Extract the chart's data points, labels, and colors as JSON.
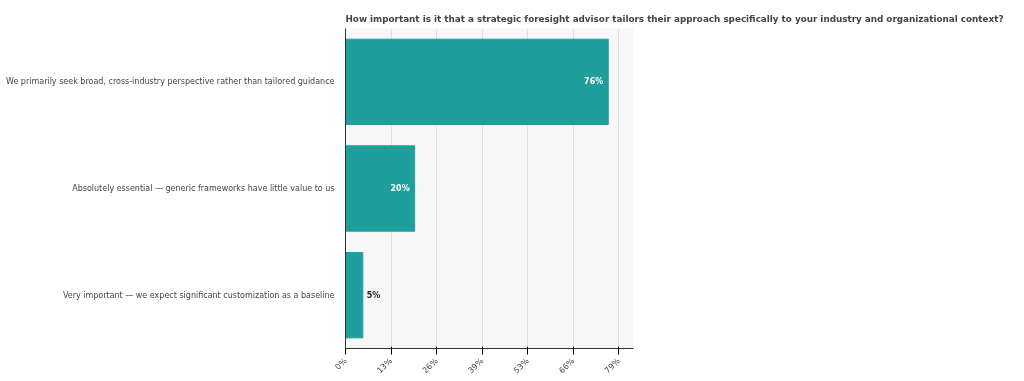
{
  "chart_data": {
    "type": "bar",
    "orientation": "horizontal",
    "title": "How important is it that a strategic foresight advisor tailors their approach specifically to your industry and organizational context?",
    "categories": [
      "We primarily seek broad, cross-industry perspective rather than tailored guidance",
      "Absolutely essential — generic frameworks have little value to us",
      "Very important — we expect significant customization as a baseline"
    ],
    "values": [
      76,
      20,
      5
    ],
    "color": "#1f9e9b",
    "value_labels": [
      "76%",
      "20%",
      "5%"
    ],
    "xlim": [
      0,
      83.3
    ],
    "xticks": [
      {
        "value": 0,
        "label": "0%"
      },
      {
        "value": 13.17,
        "label": "13%"
      },
      {
        "value": 26.33,
        "label": "26%"
      },
      {
        "value": 39.5,
        "label": "39%"
      },
      {
        "value": 52.67,
        "label": "53%"
      },
      {
        "value": 65.83,
        "label": "66%"
      },
      {
        "value": 79,
        "label": "79%"
      }
    ],
    "grid": "x"
  }
}
